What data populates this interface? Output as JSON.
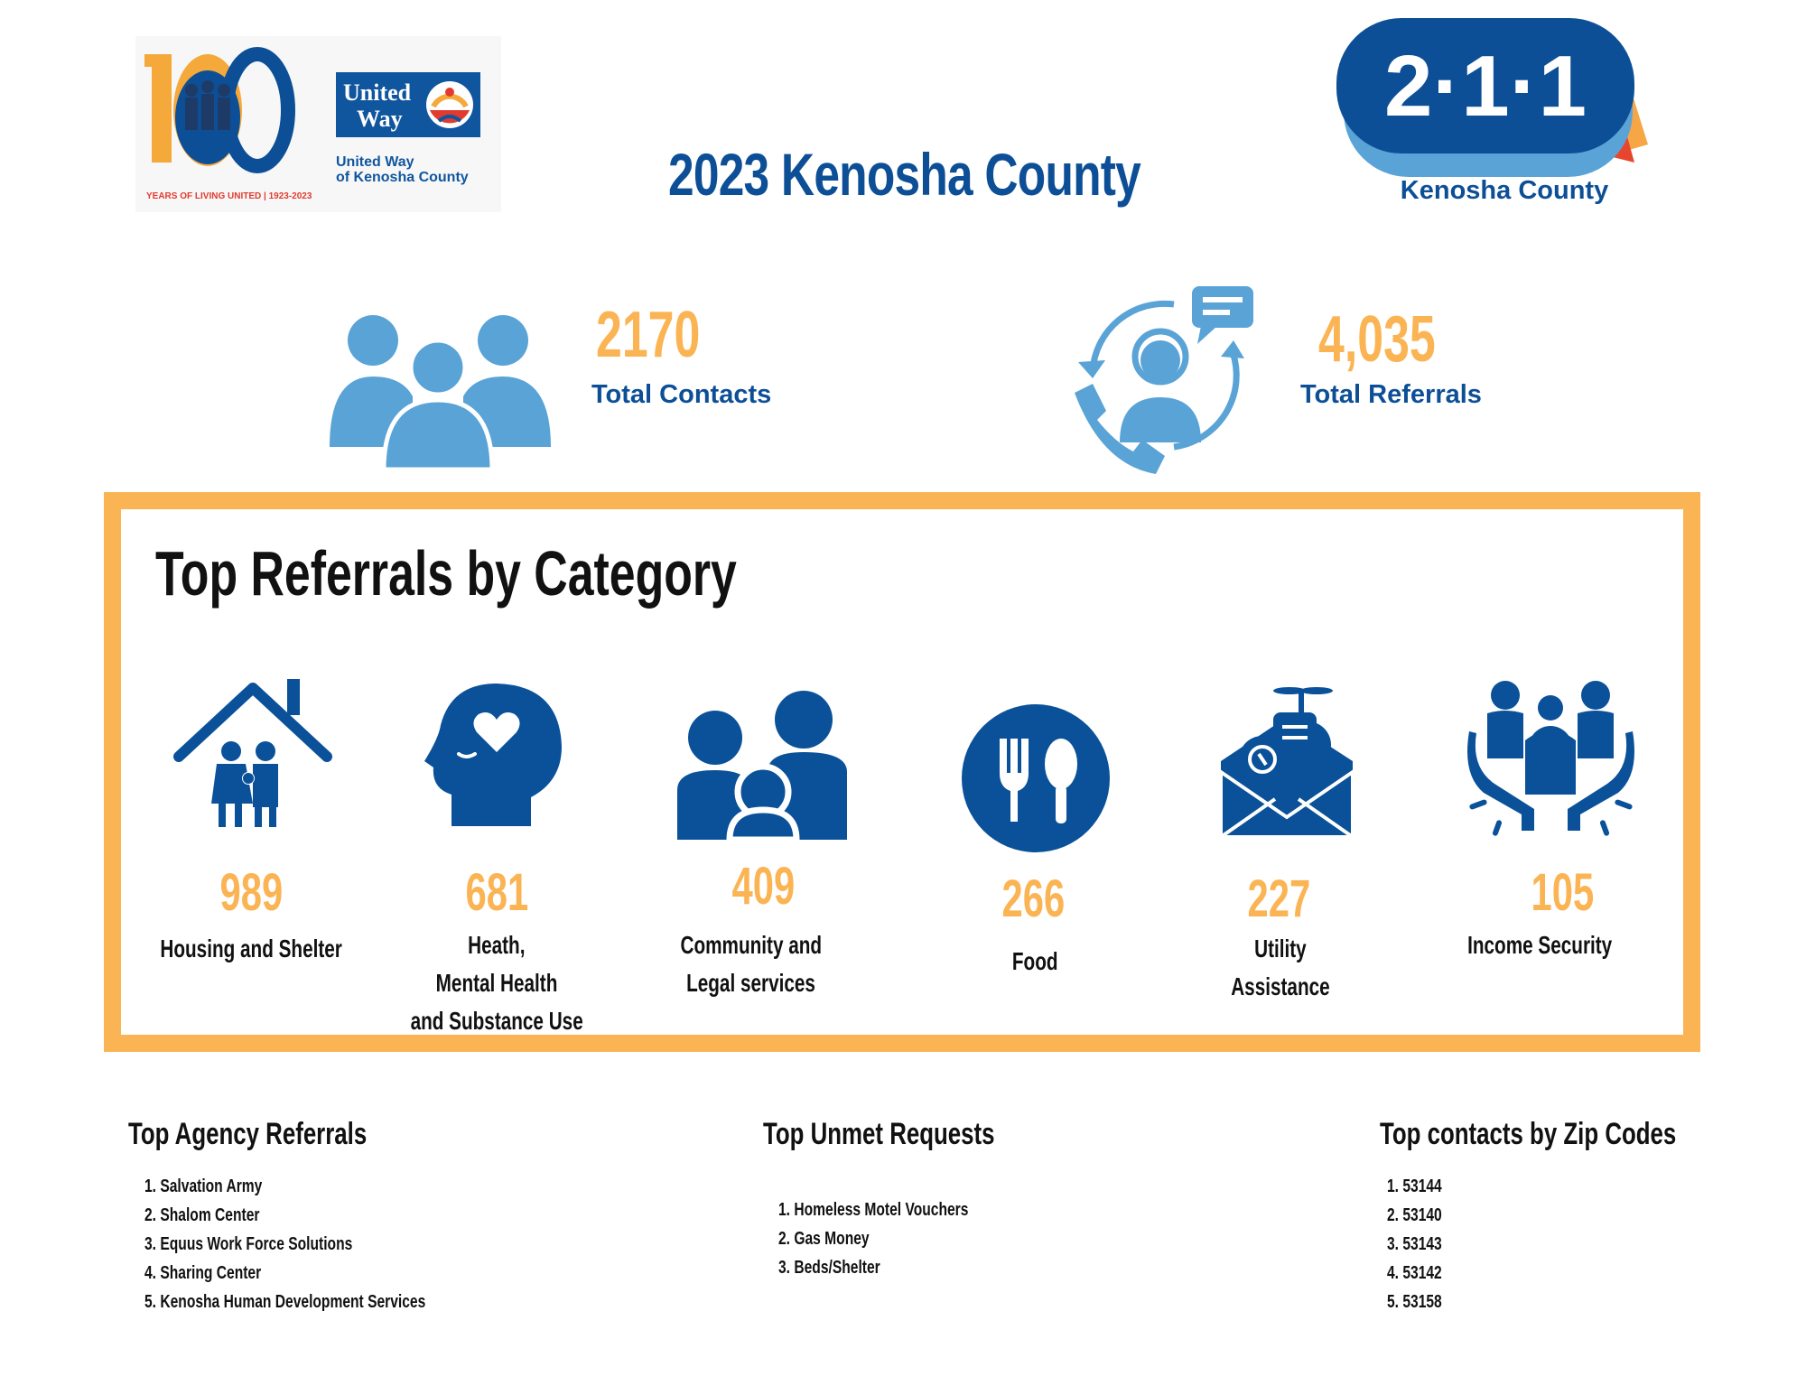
{
  "header": {
    "title": "2023 Kenosha County",
    "uw_logo": {
      "years_text": "YEARS OF LIVING UNITED | 1923-2023",
      "brand_line1": "United",
      "brand_line2": "Way",
      "org_line1": "United Way",
      "org_line2": "of Kenosha County"
    },
    "logo_211": {
      "number": "2·1·1",
      "county": "Kenosha County"
    }
  },
  "stats": [
    {
      "value": "2170",
      "label": "Total Contacts",
      "icon": "people-group-icon"
    },
    {
      "value": "4,035",
      "label": "Total Referrals",
      "icon": "call-agent-icon"
    }
  ],
  "categories_panel": {
    "title": "Top Referrals by Category",
    "items": [
      {
        "value": "989",
        "label_lines": [
          "Housing and Shelter"
        ],
        "icon": "family-home-icon"
      },
      {
        "value": "681",
        "label_lines": [
          "Heath,",
          "Mental Health",
          "and Substance Use"
        ],
        "icon": "head-heart-icon"
      },
      {
        "value": "409",
        "label_lines": [
          "Community and",
          "Legal services"
        ],
        "icon": "family-icon"
      },
      {
        "value": "266",
        "label_lines": [
          "Food"
        ],
        "icon": "fork-spoon-icon"
      },
      {
        "value": "227",
        "label_lines": [
          "Utility",
          "Assistance"
        ],
        "icon": "utility-envelope-icon"
      },
      {
        "value": "105",
        "label_lines": [
          "Income Security"
        ],
        "icon": "hands-support-icon"
      }
    ]
  },
  "agency_referrals": {
    "title": "Top Agency Referrals",
    "items": [
      "Salvation Army",
      "Shalom Center",
      "Equus Work Force Solutions",
      "Sharing Center",
      "Kenosha Human Development Services"
    ]
  },
  "unmet_requests": {
    "title": "Top Unmet Requests",
    "items": [
      "Homeless Motel Vouchers",
      "Gas Money",
      "Beds/Shelter"
    ]
  },
  "zip_codes": {
    "title": "Top contacts by Zip Codes",
    "items": [
      "53144",
      "53140",
      "53143",
      "53142",
      "53158"
    ]
  },
  "colors": {
    "navy": "#0d4f96",
    "orange": "#fbb454",
    "light_blue": "#5aa3d6",
    "icon_blue": "#0a5199"
  }
}
